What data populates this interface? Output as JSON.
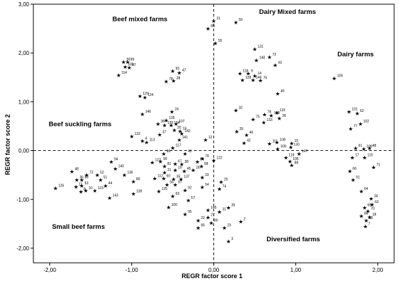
{
  "chart_data": {
    "type": "scatter",
    "xlabel": "REGR factor score 1",
    "ylabel": "REGR factor score 2",
    "xlim": [
      -2.2,
      2.2
    ],
    "ylim": [
      -2.3,
      3.0
    ],
    "xticks": [
      {
        "v": -2.0,
        "label": "-2,00"
      },
      {
        "v": -1.0,
        "label": "-1,00"
      },
      {
        "v": 0.0,
        "label": "0,00"
      },
      {
        "v": 1.0,
        "label": "1,00"
      },
      {
        "v": 2.0,
        "label": "2,00"
      }
    ],
    "yticks": [
      {
        "v": 3.0,
        "label": "3,00"
      },
      {
        "v": 2.0,
        "label": "2,00"
      },
      {
        "v": 1.0,
        "label": "1,00"
      },
      {
        "v": 0.0,
        "label": "0,00"
      },
      {
        "v": -1.0,
        "label": "-1,00"
      },
      {
        "v": -2.0,
        "label": "-2,00"
      }
    ],
    "reference_lines": {
      "x": 0.0,
      "y": 0.0,
      "style": "dashed"
    },
    "grid": false,
    "marker": "★",
    "annotations": [
      {
        "text": "Beef mixed farms",
        "x": -0.9,
        "y": 2.65
      },
      {
        "text": "Dairy Mixed farms",
        "x": 0.9,
        "y": 2.8
      },
      {
        "text": "Dairy farms",
        "x": 1.73,
        "y": 1.93
      },
      {
        "text": "Beef suckling farms",
        "x": -1.63,
        "y": 0.5
      },
      {
        "text": "Small beef farms",
        "x": -1.65,
        "y": -1.6
      },
      {
        "text": "Diversified farms",
        "x": 0.97,
        "y": -1.86
      }
    ],
    "points": [
      {
        "label": "21",
        "x": 0.0,
        "y": 2.66
      },
      {
        "label": "59",
        "x": 0.27,
        "y": 2.63
      },
      {
        "label": "89",
        "x": -0.07,
        "y": 2.5
      },
      {
        "label": "55",
        "x": 0.02,
        "y": 2.2
      },
      {
        "label": "30",
        "x": -1.1,
        "y": 1.82
      },
      {
        "label": "99",
        "x": -1.05,
        "y": 1.82
      },
      {
        "label": "116",
        "x": -1.08,
        "y": 1.72
      },
      {
        "label": "87",
        "x": -1.03,
        "y": 1.7
      },
      {
        "label": "114",
        "x": -1.16,
        "y": 1.55
      },
      {
        "label": "93",
        "x": -0.5,
        "y": 1.63
      },
      {
        "label": "47",
        "x": -0.42,
        "y": 1.6
      },
      {
        "label": "78",
        "x": -0.58,
        "y": 1.42
      },
      {
        "label": "28",
        "x": -0.49,
        "y": 1.43
      },
      {
        "label": "120",
        "x": -0.9,
        "y": 1.12
      },
      {
        "label": "124",
        "x": -0.84,
        "y": 1.09
      },
      {
        "label": "131",
        "x": 0.5,
        "y": 2.08
      },
      {
        "label": "72",
        "x": 0.68,
        "y": 1.92
      },
      {
        "label": "148",
        "x": 0.52,
        "y": 1.85
      },
      {
        "label": "43",
        "x": 0.75,
        "y": 1.75
      },
      {
        "label": "118",
        "x": 0.32,
        "y": 1.58
      },
      {
        "label": "9",
        "x": 0.42,
        "y": 1.58
      },
      {
        "label": "14",
        "x": 0.5,
        "y": 1.53
      },
      {
        "label": "128",
        "x": 0.35,
        "y": 1.45
      },
      {
        "label": "146",
        "x": 0.48,
        "y": 1.45
      },
      {
        "label": "76",
        "x": 0.57,
        "y": 1.44
      },
      {
        "label": "49",
        "x": 0.78,
        "y": 1.17
      },
      {
        "label": "105",
        "x": 1.47,
        "y": 1.48
      },
      {
        "label": "101",
        "x": 1.65,
        "y": 0.8
      },
      {
        "label": "62",
        "x": 1.75,
        "y": 0.76
      },
      {
        "label": "102",
        "x": 1.79,
        "y": 0.55
      },
      {
        "label": "77",
        "x": 1.67,
        "y": 0.45
      },
      {
        "label": "146",
        "x": -0.87,
        "y": 0.75
      },
      {
        "label": "24",
        "x": -0.51,
        "y": 0.8
      },
      {
        "label": "32",
        "x": 0.27,
        "y": 0.83
      },
      {
        "label": "75",
        "x": 0.48,
        "y": 0.64
      },
      {
        "label": "78",
        "x": 0.62,
        "y": 0.74
      },
      {
        "label": "129",
        "x": 0.7,
        "y": 0.72
      },
      {
        "label": "110",
        "x": 0.77,
        "y": 0.78
      },
      {
        "label": "133",
        "x": 0.61,
        "y": 0.58
      },
      {
        "label": "39",
        "x": 0.8,
        "y": 0.66
      },
      {
        "label": "36",
        "x": -0.68,
        "y": 0.55
      },
      {
        "label": "139",
        "x": -0.6,
        "y": 0.52
      },
      {
        "label": "134",
        "x": -0.52,
        "y": 0.52
      },
      {
        "label": "135",
        "x": -0.58,
        "y": 0.62
      },
      {
        "label": "107",
        "x": -0.46,
        "y": 0.55
      },
      {
        "label": "20",
        "x": -0.48,
        "y": 0.42
      },
      {
        "label": "16",
        "x": -0.41,
        "y": 0.4
      },
      {
        "label": "37",
        "x": -0.66,
        "y": 0.33
      },
      {
        "label": "143",
        "x": -0.39,
        "y": 0.35
      },
      {
        "label": "141",
        "x": -0.42,
        "y": 0.22
      },
      {
        "label": "12",
        "x": -0.1,
        "y": 0.22
      },
      {
        "label": "132",
        "x": -1.0,
        "y": 0.29
      },
      {
        "label": "4",
        "x": -0.87,
        "y": 0.2
      },
      {
        "label": "113",
        "x": -0.82,
        "y": 0.17
      },
      {
        "label": "117",
        "x": -0.5,
        "y": 0.06
      },
      {
        "label": "96",
        "x": -0.61,
        "y": -0.06
      },
      {
        "label": "41",
        "x": -0.35,
        "y": -0.06
      },
      {
        "label": "25",
        "x": 0.28,
        "y": 0.39
      },
      {
        "label": "46",
        "x": 0.4,
        "y": 0.32
      },
      {
        "label": "42",
        "x": 0.37,
        "y": 0.16
      },
      {
        "label": "111",
        "x": 0.68,
        "y": 0.14
      },
      {
        "label": "108",
        "x": 0.77,
        "y": 0.17
      },
      {
        "label": "15",
        "x": 0.95,
        "y": 0.15
      },
      {
        "label": "130",
        "x": 0.94,
        "y": 0.07
      },
      {
        "label": "109",
        "x": 0.78,
        "y": 0.04
      },
      {
        "label": "147",
        "x": 1.04,
        "y": -0.06
      },
      {
        "label": "119",
        "x": 0.88,
        "y": -0.14
      },
      {
        "label": "106",
        "x": 0.93,
        "y": -0.22
      },
      {
        "label": "88",
        "x": 0.95,
        "y": -0.3
      },
      {
        "label": "61",
        "x": 1.73,
        "y": 0.05
      },
      {
        "label": "106",
        "x": 1.83,
        "y": 0.04
      },
      {
        "label": "48",
        "x": 1.9,
        "y": 0.05
      },
      {
        "label": "17",
        "x": 1.69,
        "y": -0.14
      },
      {
        "label": "115",
        "x": 1.84,
        "y": -0.14
      },
      {
        "label": "66",
        "x": 1.66,
        "y": -0.42
      },
      {
        "label": "71",
        "x": 1.95,
        "y": -0.34
      },
      {
        "label": "91",
        "x": 1.7,
        "y": -0.6
      },
      {
        "label": "64",
        "x": 1.8,
        "y": -0.83
      },
      {
        "label": "34",
        "x": 1.92,
        "y": -0.98
      },
      {
        "label": "63",
        "x": 1.93,
        "y": -1.1
      },
      {
        "label": "69",
        "x": 1.84,
        "y": -1.17
      },
      {
        "label": "70",
        "x": 1.88,
        "y": -1.24
      },
      {
        "label": "84",
        "x": 1.8,
        "y": -1.34
      },
      {
        "label": "18",
        "x": 1.9,
        "y": -1.36
      },
      {
        "label": "39",
        "x": 1.86,
        "y": -1.43
      },
      {
        "label": "7",
        "x": 1.85,
        "y": -1.55
      },
      {
        "label": "94",
        "x": -1.25,
        "y": -0.23
      },
      {
        "label": "48",
        "x": -1.73,
        "y": -0.43
      },
      {
        "label": "73",
        "x": -1.55,
        "y": -0.5
      },
      {
        "label": "52",
        "x": -1.42,
        "y": -0.5
      },
      {
        "label": "140",
        "x": -1.2,
        "y": -0.37
      },
      {
        "label": "36",
        "x": -1.67,
        "y": -0.6
      },
      {
        "label": "50",
        "x": -1.61,
        "y": -0.6
      },
      {
        "label": "51",
        "x": -1.38,
        "y": -0.6
      },
      {
        "label": "136",
        "x": -1.09,
        "y": -0.5
      },
      {
        "label": "126",
        "x": -1.93,
        "y": -0.77
      },
      {
        "label": "11",
        "x": -1.68,
        "y": -0.74
      },
      {
        "label": "53",
        "x": -1.61,
        "y": -0.72
      },
      {
        "label": "44",
        "x": -1.32,
        "y": -0.72
      },
      {
        "label": "80",
        "x": -0.98,
        "y": -0.63
      },
      {
        "label": "8",
        "x": -1.62,
        "y": -0.84
      },
      {
        "label": "10",
        "x": -1.56,
        "y": -0.82
      },
      {
        "label": "123",
        "x": -1.45,
        "y": -0.82
      },
      {
        "label": "138",
        "x": -0.98,
        "y": -0.88
      },
      {
        "label": "143",
        "x": -1.27,
        "y": -0.97
      },
      {
        "label": "127",
        "x": -0.75,
        "y": -0.24
      },
      {
        "label": "90",
        "x": -0.65,
        "y": -0.22
      },
      {
        "label": "81",
        "x": -0.6,
        "y": -0.32
      },
      {
        "label": "67",
        "x": -0.47,
        "y": -0.27
      },
      {
        "label": "38",
        "x": -0.39,
        "y": -0.28
      },
      {
        "label": "79",
        "x": -0.14,
        "y": -0.16
      },
      {
        "label": "84",
        "x": -0.2,
        "y": -0.23
      },
      {
        "label": "68",
        "x": -0.15,
        "y": -0.32
      },
      {
        "label": "122",
        "x": 0.0,
        "y": -0.2
      },
      {
        "label": "21",
        "x": -0.6,
        "y": -0.45
      },
      {
        "label": "19",
        "x": -0.47,
        "y": -0.4
      },
      {
        "label": "45",
        "x": -0.36,
        "y": -0.42
      },
      {
        "label": "26",
        "x": -0.25,
        "y": -0.4
      },
      {
        "label": "112",
        "x": -0.72,
        "y": -0.57
      },
      {
        "label": "60",
        "x": -0.61,
        "y": -0.57
      },
      {
        "label": "35",
        "x": -0.49,
        "y": -0.58
      },
      {
        "label": "137",
        "x": -0.4,
        "y": -0.58
      },
      {
        "label": "33",
        "x": -0.14,
        "y": -0.55
      },
      {
        "label": "56",
        "x": -0.57,
        "y": -0.7
      },
      {
        "label": "97",
        "x": -0.47,
        "y": -0.7
      },
      {
        "label": "54",
        "x": -0.14,
        "y": -0.75
      },
      {
        "label": "125",
        "x": -0.67,
        "y": -0.83
      },
      {
        "label": "92",
        "x": -0.35,
        "y": -0.81
      },
      {
        "label": "63",
        "x": -0.5,
        "y": -0.93
      },
      {
        "label": "57",
        "x": -0.31,
        "y": -1.02
      },
      {
        "label": "100",
        "x": -0.55,
        "y": -1.16
      },
      {
        "label": "29",
        "x": 0.09,
        "y": -0.64
      },
      {
        "label": "74",
        "x": 0.07,
        "y": -0.78
      },
      {
        "label": "95",
        "x": -0.35,
        "y": -1.3
      },
      {
        "label": "145",
        "x": -0.07,
        "y": -1.22
      },
      {
        "label": "31",
        "x": 0.07,
        "y": -1.25
      },
      {
        "label": "35",
        "x": 0.18,
        "y": -1.17
      },
      {
        "label": "22",
        "x": -0.19,
        "y": -1.43
      },
      {
        "label": "27",
        "x": -0.07,
        "y": -1.37
      },
      {
        "label": "80",
        "x": -0.03,
        "y": -1.48
      },
      {
        "label": "85",
        "x": -0.19,
        "y": -1.58
      },
      {
        "label": "2",
        "x": 0.33,
        "y": -1.45
      },
      {
        "label": "23",
        "x": 0.13,
        "y": -1.58
      },
      {
        "label": "3",
        "x": 0.18,
        "y": -1.86
      }
    ]
  }
}
